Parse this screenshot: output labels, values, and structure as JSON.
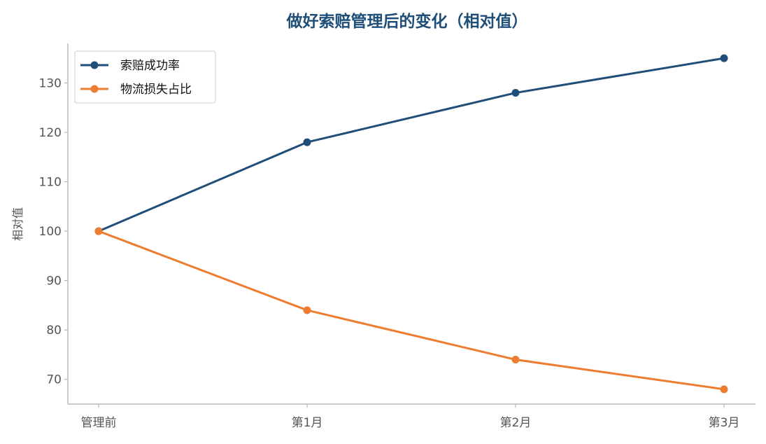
{
  "chart_data": {
    "type": "line",
    "title": "做好索赔管理后的变化（相对值）",
    "xlabel": "",
    "ylabel": "相对值",
    "categories": [
      "管理前",
      "第1月",
      "第2月",
      "第3月"
    ],
    "series": [
      {
        "name": "索赔成功率",
        "values": [
          100,
          118,
          128,
          135
        ],
        "color": "#1f4e79"
      },
      {
        "name": "物流损失占比",
        "values": [
          100,
          84,
          74,
          68
        ],
        "color": "#ed7d31"
      }
    ],
    "ylim": [
      65,
      138
    ],
    "yticks": [
      70,
      80,
      90,
      100,
      110,
      120,
      130
    ],
    "grid": false,
    "legend_position": "top-left",
    "axis_color": "#aaaaaa"
  }
}
